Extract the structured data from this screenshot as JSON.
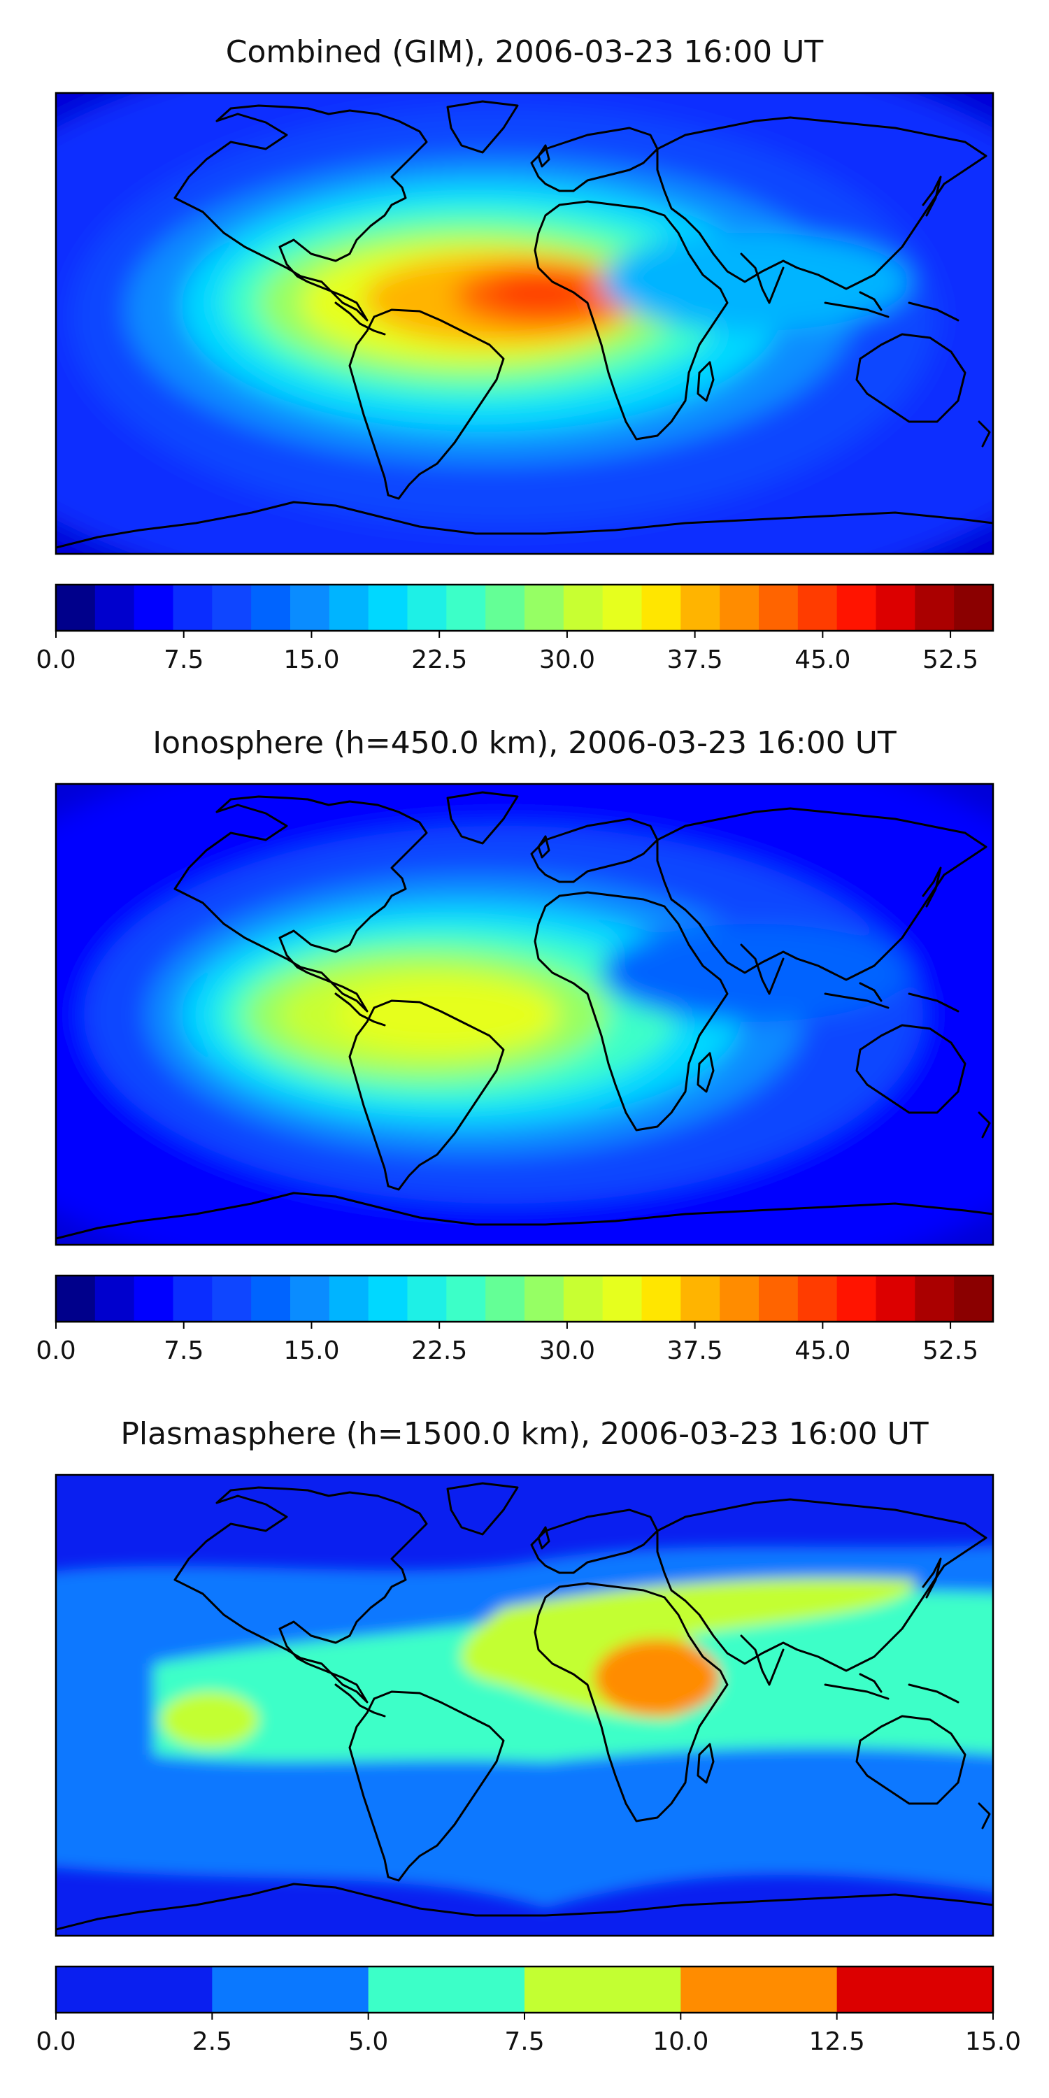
{
  "colors": {
    "jet_bins": [
      "#00008b",
      "#0000cd",
      "#0000ff",
      "#0a2dff",
      "#0f46ff",
      "#0064ff",
      "#0a8cff",
      "#00b4ff",
      "#00d8ff",
      "#1ef0e6",
      "#3cffc8",
      "#64ff96",
      "#96ff64",
      "#c8ff32",
      "#e6ff1e",
      "#ffe600",
      "#ffb400",
      "#ff8c00",
      "#ff6400",
      "#ff3c00",
      "#ff1400",
      "#dc0000",
      "#aa0000",
      "#8b0000"
    ],
    "plasma_bins": [
      "#0a1ff0",
      "#0a78ff",
      "#3cffc8",
      "#c3ff32",
      "#ff8c00",
      "#dc0000"
    ],
    "land_outline": "#000000"
  },
  "panels": [
    {
      "id": "combined",
      "title": "Combined (GIM), 2006-03-23 16:00 UT",
      "colorbar_ticks": [
        "0.0",
        "7.5",
        "15.0",
        "22.5",
        "30.0",
        "37.5",
        "45.0",
        "52.5"
      ],
      "colorbar_range": [
        0,
        55
      ],
      "max_value_region": "Africa / South America (about 45)"
    },
    {
      "id": "ionosphere",
      "title": "Ionosphere  (h=450.0 km), 2006-03-23 16:00 UT",
      "colorbar_ticks": [
        "0.0",
        "7.5",
        "15.0",
        "22.5",
        "30.0",
        "37.5",
        "45.0",
        "52.5"
      ],
      "colorbar_range": [
        0,
        55
      ],
      "max_value_region": "Tropical Atlantic / Africa (about 33)"
    },
    {
      "id": "plasmasphere",
      "title": "Plasmasphere (h=1500.0 km), 2006-03-23 16:00 UT",
      "colorbar_ticks": [
        "0.0",
        "2.5",
        "5.0",
        "7.5",
        "10.0",
        "12.5",
        "15.0"
      ],
      "colorbar_range": [
        0,
        15
      ],
      "max_value_region": "East Africa (about 11)"
    }
  ]
}
